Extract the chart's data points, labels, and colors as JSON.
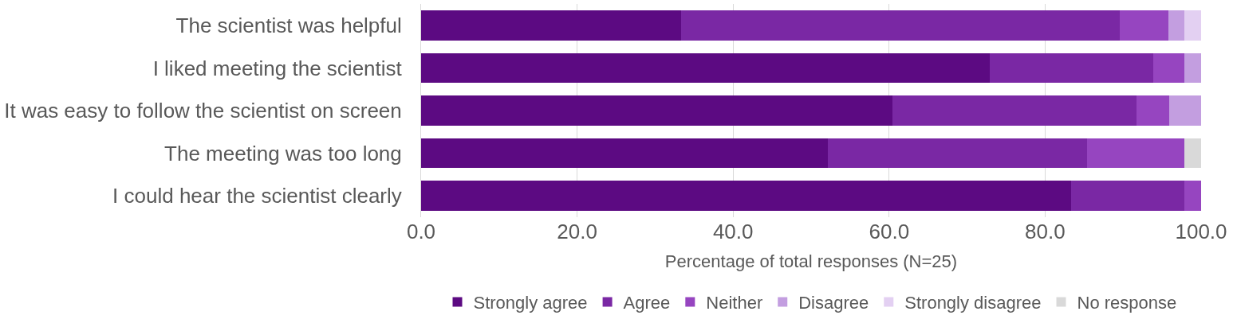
{
  "chart_data": {
    "type": "bar",
    "orientation": "horizontal",
    "stacked": true,
    "categories": [
      "The scientist was helpful",
      "I liked meeting the scientist",
      "It was easy to follow the scientist on screen",
      "The meeting was too long",
      "I could hear the scientist clearly"
    ],
    "series": [
      {
        "name": "Strongly agree",
        "color": "#5c0a82",
        "values": [
          33.3,
          72.9,
          60.4,
          52.1,
          83.3
        ]
      },
      {
        "name": "Agree",
        "color": "#7a28a4",
        "values": [
          56.3,
          21.0,
          31.3,
          33.3,
          14.6
        ]
      },
      {
        "name": "Neither",
        "color": "#9645c0",
        "values": [
          6.2,
          4.0,
          4.2,
          12.5,
          2.1
        ]
      },
      {
        "name": "Disagree",
        "color": "#c39ee0",
        "values": [
          2.1,
          2.1,
          4.1,
          null,
          null
        ]
      },
      {
        "name": "Strongly disagree",
        "color": "#e3d0f2",
        "values": [
          2.1,
          null,
          null,
          null,
          null
        ]
      },
      {
        "name": "No response",
        "color": "#d9d9d9",
        "values": [
          null,
          null,
          null,
          2.1,
          null
        ]
      }
    ],
    "xlabel": "Percentage of total responses (N=25)",
    "xlim": [
      0,
      100
    ],
    "xticks": [
      {
        "value": 0,
        "label": "0.0"
      },
      {
        "value": 20,
        "label": "20.0"
      },
      {
        "value": 40,
        "label": "40.0"
      },
      {
        "value": 60,
        "label": "60.0"
      },
      {
        "value": 80,
        "label": "80.0"
      },
      {
        "value": 100,
        "label": "100.0"
      }
    ],
    "grid": "x",
    "legend": "bottom"
  }
}
